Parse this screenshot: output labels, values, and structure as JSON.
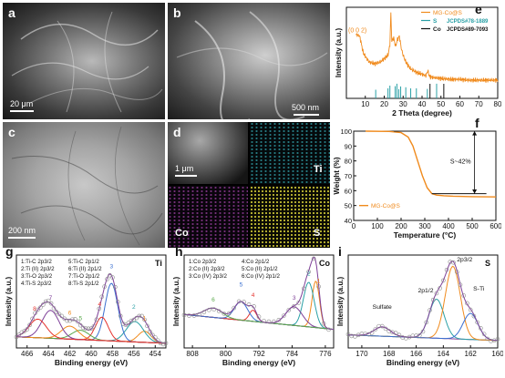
{
  "panels": {
    "a": {
      "label": "a",
      "scale": "20 μm"
    },
    "b": {
      "label": "b",
      "scale": "500 nm"
    },
    "c": {
      "label": "c",
      "scale": "200 nm"
    },
    "d": {
      "label": "d",
      "scale": "1 μm",
      "elements": [
        "Ti",
        "Co",
        "S"
      ]
    },
    "e": {
      "label": "e"
    },
    "f": {
      "label": "f"
    },
    "g": {
      "label": "g"
    },
    "h": {
      "label": "h"
    },
    "i": {
      "label": "i"
    }
  },
  "colors": {
    "orange": "#f08a1c",
    "teal": "#2aa0a6",
    "blue": "#3a6fd0",
    "purple": "#7e3f98",
    "green": "#58a84a",
    "red": "#e5322d"
  },
  "chart_data": [
    {
      "panel": "e",
      "type": "line",
      "xlabel": "2 Theta (degree)",
      "ylabel": "Intensity (a.u.)",
      "xlim": [
        0,
        80
      ],
      "xticks": [
        10,
        20,
        30,
        40,
        50,
        60,
        70,
        80
      ],
      "annotation": "(0 0 2)",
      "legend": [
        {
          "name": "MG-Co@S",
          "color": "#f08a1c"
        },
        {
          "name": "S",
          "ref": "JCPDS#78-1889",
          "color": "#2aa0a6"
        },
        {
          "name": "Co",
          "ref": "JCPDS#89-7093",
          "color": "#111111"
        }
      ],
      "series": [
        {
          "name": "MG-Co@S",
          "x": [
            5,
            7,
            9,
            12,
            15,
            18,
            20,
            22,
            23,
            23.5,
            24,
            25,
            26,
            27,
            28,
            29,
            30,
            31,
            32,
            34,
            37,
            40,
            42,
            43,
            44,
            46,
            50,
            55,
            60,
            65,
            70,
            75,
            80
          ],
          "y": [
            0.74,
            0.72,
            0.52,
            0.42,
            0.4,
            0.42,
            0.46,
            0.5,
            0.62,
            0.98,
            0.66,
            0.7,
            0.6,
            0.68,
            0.72,
            0.58,
            0.5,
            0.44,
            0.4,
            0.34,
            0.3,
            0.28,
            0.26,
            0.32,
            0.25,
            0.24,
            0.23,
            0.22,
            0.22,
            0.21,
            0.21,
            0.21,
            0.21
          ]
        }
      ],
      "s_ref_peaks": [
        15.5,
        22,
        23,
        25.8,
        26.7,
        27.7,
        28.7,
        31.4,
        34,
        37,
        42.8,
        47.7
      ],
      "co_ref_peaks": [
        44.2,
        51.5
      ]
    },
    {
      "panel": "f",
      "type": "line",
      "xlabel": "Temperature (°C)",
      "ylabel": "Weight (%)",
      "xlim": [
        0,
        600
      ],
      "ylim": [
        40,
        100
      ],
      "xticks": [
        0,
        100,
        200,
        300,
        400,
        500,
        600
      ],
      "yticks": [
        40,
        50,
        60,
        70,
        80,
        90,
        100
      ],
      "annotation": "S~42%",
      "series": [
        {
          "name": "MG-Co@S",
          "x": [
            50,
            150,
            200,
            230,
            250,
            270,
            290,
            310,
            330,
            350,
            380,
            420,
            500,
            600
          ],
          "y": [
            100,
            99.8,
            99,
            96,
            90,
            80,
            70,
            62,
            58,
            57,
            56.6,
            56.3,
            56,
            55.8
          ]
        }
      ]
    },
    {
      "panel": "g",
      "type": "line",
      "element": "Ti",
      "xlabel": "Binding energy (eV)",
      "ylabel": "Intensity (a.u.)",
      "xlim": [
        467,
        453
      ],
      "xticks": [
        466,
        464,
        462,
        460,
        458,
        456,
        454
      ],
      "legend": [
        "1:Ti-C 2p3/2",
        "2:Ti (II) 2p3/2",
        "3:Ti-O 2p3/2",
        "4:Ti-S 2p3/2",
        "5:Ti-C 2p1/2",
        "6:Ti (II) 2p1/2",
        "7:Ti-O 2p1/2",
        "8:Ti-S 2p1/2"
      ],
      "peak_labels": [
        "1",
        "2",
        "3",
        "4",
        "5",
        "6",
        "7",
        "8"
      ]
    },
    {
      "panel": "h",
      "type": "line",
      "element": "Co",
      "xlabel": "Binding energy (eV)",
      "ylabel": "Intensity (a.u.)",
      "xlim": [
        810,
        774
      ],
      "xticks": [
        808,
        800,
        792,
        784,
        776
      ],
      "legend": [
        "1:Co 2p3/2",
        "2:Co (II) 2p3/2",
        "3:Co (IV) 2p3/2",
        "4:Co 2p1/2",
        "5:Co (II) 2p1/2",
        "6:Co (IV) 2p1/2"
      ],
      "peak_labels": [
        "1",
        "2",
        "3",
        "4",
        "5",
        "6"
      ]
    },
    {
      "panel": "i",
      "type": "line",
      "element": "S",
      "xlabel": "Binding energy (eV)",
      "ylabel": "Intensity (a.u.)",
      "xlim": [
        171,
        160
      ],
      "xticks": [
        170,
        168,
        166,
        164,
        162,
        160
      ],
      "peak_labels": [
        "Sulfate",
        "2p1/2",
        "2p3/2",
        "S-Ti"
      ]
    }
  ]
}
